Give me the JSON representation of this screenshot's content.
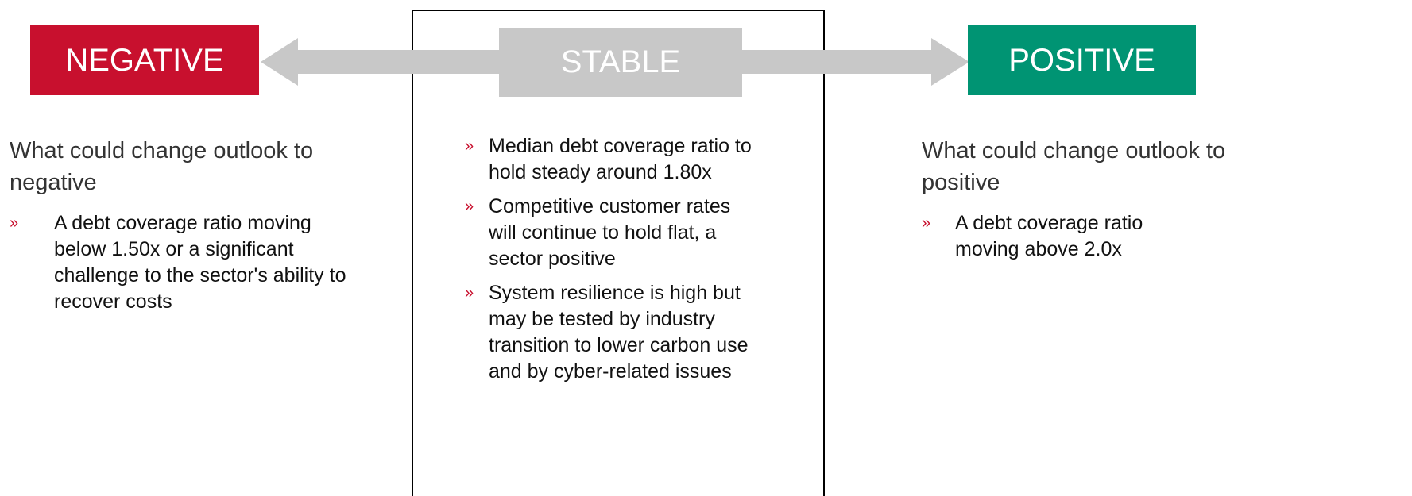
{
  "bullet_marker": "»",
  "negative": {
    "label": "NEGATIVE",
    "heading": "What could change outlook to negative",
    "bullets": [
      "A debt coverage ratio moving below 1.50x or a significant challenge to the sector's ability to recover costs"
    ]
  },
  "stable": {
    "label": "STABLE",
    "bullets": [
      "Median debt coverage ratio to hold steady around 1.80x",
      "Competitive customer rates will continue to hold flat, a sector positive",
      "System resilience is high but may be tested by industry transition to lower carbon use and by cyber-related issues"
    ]
  },
  "positive": {
    "label": "POSITIVE",
    "heading": "What could change outlook to positive",
    "bullets": [
      "A debt coverage ratio moving above 2.0x"
    ]
  }
}
